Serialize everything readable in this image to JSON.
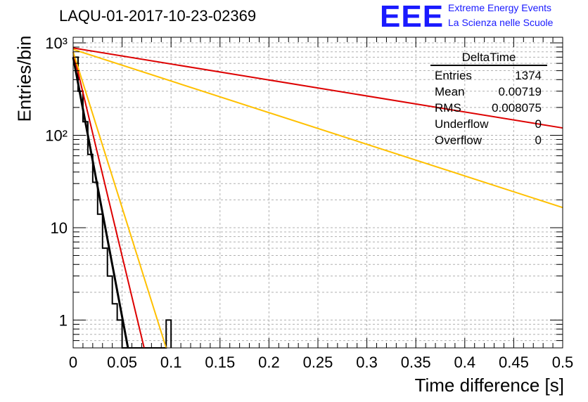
{
  "header": {
    "title": "LAQU-01-2017-10-23-02369",
    "logo_text": "EEE",
    "logo_line1": "Extreme Energy Events",
    "logo_line2": "La Scienza nelle Scuole"
  },
  "stats_box": {
    "title": "DeltaTime",
    "rows": [
      {
        "label": "Entries",
        "value": "1374"
      },
      {
        "label": "Mean",
        "value": "0.00719"
      },
      {
        "label": "RMS",
        "value": "0.008075"
      },
      {
        "label": "Underflow",
        "value": "0"
      },
      {
        "label": "Overflow",
        "value": "0"
      }
    ]
  },
  "colors": {
    "histogram": "#000000",
    "fit": "#000000",
    "red_curve": "#dd0000",
    "orange_curve": "#ffc000",
    "grid": "#b0b0b0"
  },
  "chart_data": {
    "type": "line",
    "title": "LAQU-01-2017-10-23-02369",
    "xlabel": "Time difference [s]",
    "ylabel": "Entries/bin",
    "xlim": [
      0,
      0.5
    ],
    "ylim": [
      0.5,
      1150
    ],
    "yscale": "log",
    "grid": true,
    "x_ticks": [
      "0",
      "0.05",
      "0.1",
      "0.15",
      "0.2",
      "0.25",
      "0.3",
      "0.35",
      "0.4",
      "0.45",
      "0.5"
    ],
    "y_ticks": [
      {
        "value": 1,
        "label": "1"
      },
      {
        "value": 10,
        "label": "10"
      },
      {
        "value": 100,
        "label": "10²"
      },
      {
        "value": 1000,
        "label": "10³"
      }
    ],
    "histogram": {
      "bin_width": 0.005,
      "values": [
        700,
        300,
        140,
        62,
        31,
        14,
        6,
        3,
        1.5,
        1,
        0,
        0,
        0,
        0,
        0,
        0,
        0,
        0,
        0,
        1
      ]
    },
    "series": [
      {
        "name": "exponential fit",
        "color": "#000000",
        "x": [
          0,
          0.056
        ],
        "y": [
          700,
          0.5
        ]
      },
      {
        "name": "red steep",
        "color": "#dd0000",
        "x": [
          0,
          0.0725
        ],
        "y": [
          800,
          0.5
        ]
      },
      {
        "name": "orange steep",
        "color": "#ffc000",
        "x": [
          0,
          0.095
        ],
        "y": [
          800,
          0.5
        ]
      },
      {
        "name": "red shallow",
        "color": "#dd0000",
        "x": [
          0,
          0.5
        ],
        "y": [
          880,
          120
        ]
      },
      {
        "name": "orange shallow",
        "color": "#ffc000",
        "x": [
          0,
          0.5
        ],
        "y": [
          850,
          16.5
        ]
      }
    ]
  }
}
